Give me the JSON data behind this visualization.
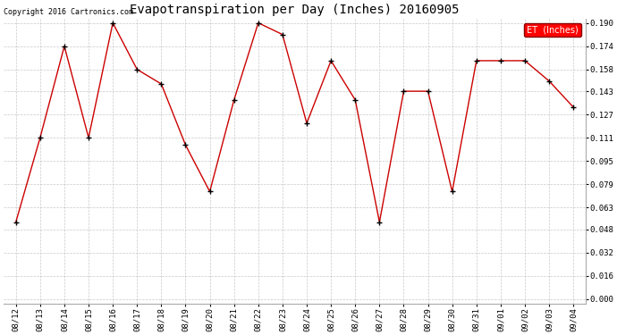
{
  "title": "Evapotranspiration per Day (Inches) 20160905",
  "copyright": "Copyright 2016 Cartronics.com",
  "legend_label": "ET  (Inches)",
  "legend_bg": "#ff0000",
  "legend_text_color": "#ffffff",
  "x_labels": [
    "08/12",
    "08/13",
    "08/14",
    "08/15",
    "08/16",
    "08/17",
    "08/18",
    "08/19",
    "08/20",
    "08/21",
    "08/22",
    "08/23",
    "08/24",
    "08/25",
    "08/26",
    "08/27",
    "08/28",
    "08/29",
    "08/30",
    "08/31",
    "09/01",
    "09/02",
    "09/03",
    "09/04"
  ],
  "y_values": [
    0.053,
    0.111,
    0.174,
    0.111,
    0.19,
    0.158,
    0.148,
    0.106,
    0.074,
    0.137,
    0.19,
    0.182,
    0.121,
    0.164,
    0.137,
    0.053,
    0.143,
    0.143,
    0.074,
    0.164,
    0.164,
    0.164,
    0.15,
    0.132
  ],
  "ylim_min": 0.0,
  "ylim_max": 0.19,
  "yticks": [
    0.0,
    0.016,
    0.032,
    0.048,
    0.063,
    0.079,
    0.095,
    0.111,
    0.127,
    0.143,
    0.158,
    0.174,
    0.19
  ],
  "line_color": "#cc0000",
  "marker_color": "#000000",
  "grid_color": "#bbbbbb",
  "plot_bg_color": "#ffffff",
  "fig_bg_color": "#ffffff",
  "title_fontsize": 10,
  "copyright_fontsize": 6,
  "tick_fontsize": 6.5,
  "legend_fontsize": 7
}
